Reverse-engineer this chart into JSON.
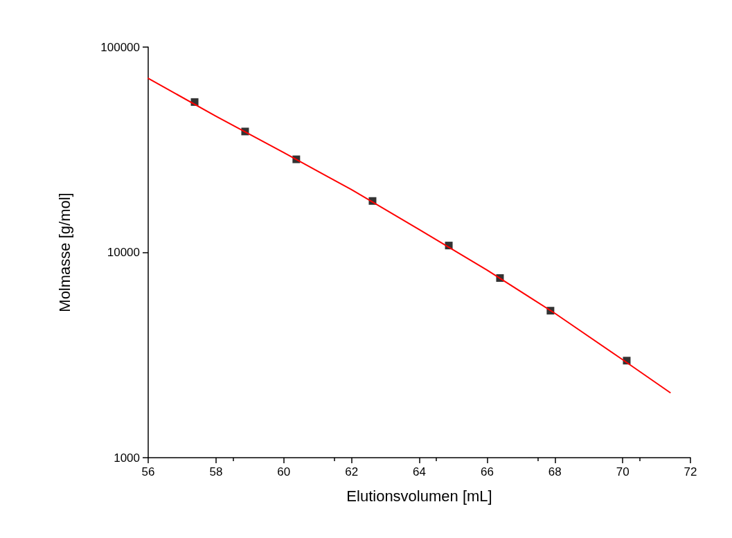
{
  "chart_data": {
    "type": "scatter",
    "xlabel": "Elutionsvolumen [mL]",
    "ylabel": "Molmasse [g/mol]",
    "log": "y",
    "xlim": [
      56,
      72
    ],
    "xticks": [
      56,
      58,
      60,
      62,
      64,
      66,
      68,
      70,
      72
    ],
    "ylim": [
      1000,
      100000
    ],
    "yticks": [
      1000,
      10000,
      100000
    ],
    "grid": false,
    "marker": "square",
    "series": [
      {
        "color": "#000000",
        "x": [
          57.37,
          58.86,
          60.37,
          62.62,
          64.87,
          66.38,
          67.87,
          70.12
        ],
        "values": [
          54000,
          38800,
          28400,
          17800,
          10800,
          7500,
          5200,
          2970
        ]
      },
      {
        "type": "line",
        "color": "#ff0000",
        "marker": "none",
        "line_style": "solid",
        "x": [
          56,
          58,
          60,
          62,
          64,
          66,
          68,
          70,
          71.4
        ],
        "values": [
          70500,
          46000,
          30600,
          20200,
          12900,
          8200,
          5050,
          3000,
          2075
        ]
      }
    ]
  }
}
